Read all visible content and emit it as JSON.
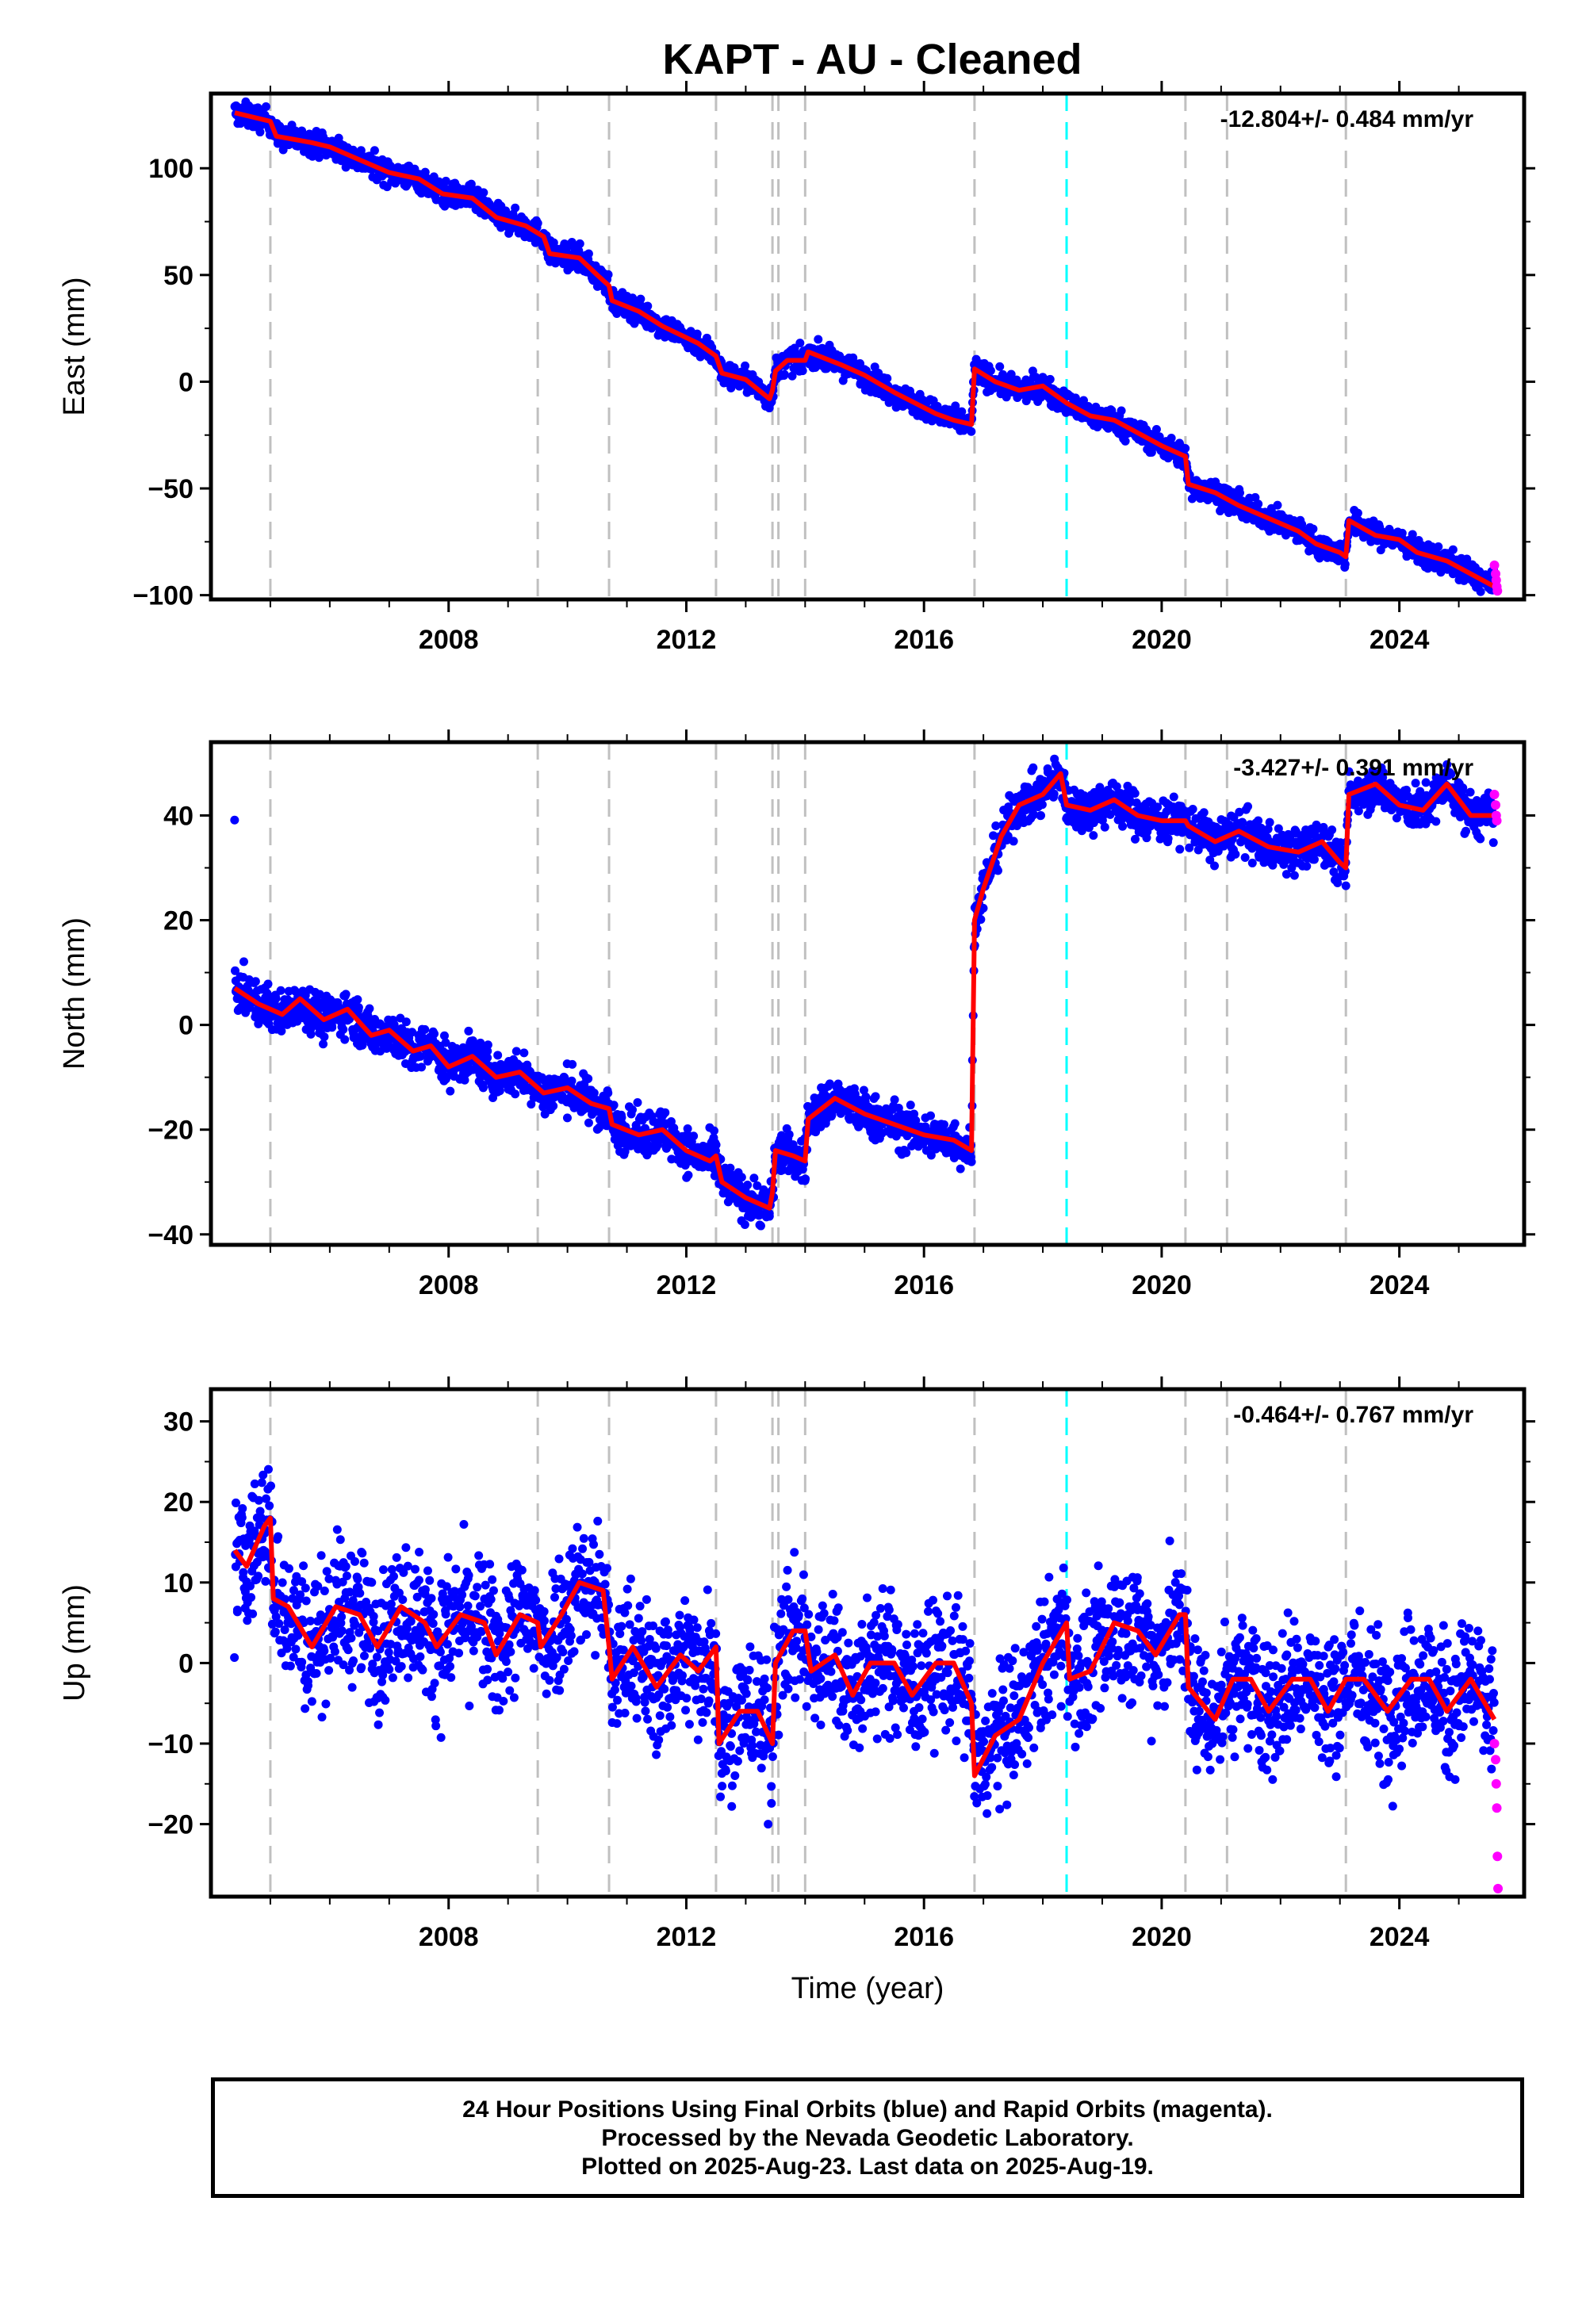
{
  "title": "KAPT  - AU - Cleaned",
  "chart_data": [
    {
      "type": "scatter",
      "component": "east",
      "ylabel": "East (mm)",
      "xlabel": "",
      "rate_text": "-12.804+/- 0.484 mm/yr",
      "xlim": [
        2004.0,
        2026.1
      ],
      "ylim": [
        -102,
        135
      ],
      "yticks": [
        100,
        50,
        0,
        -50,
        -100
      ],
      "ytick_labels": [
        "100",
        "50",
        "0",
        "−50",
        "−100"
      ],
      "xticks": [
        2008,
        2012,
        2016,
        2020,
        2024
      ],
      "xtick_labels": [
        "2008",
        "2012",
        "2016",
        "2020",
        "2024"
      ],
      "offset_lines_gray": [
        2005.0,
        2009.5,
        2010.7,
        2012.5,
        2013.45,
        2013.55,
        2014.0,
        2016.85,
        2020.4,
        2021.1,
        2023.1
      ],
      "offset_lines_cyan": [
        2018.4
      ],
      "scatter_spread": 4,
      "model_line": [
        [
          2004.4,
          126
        ],
        [
          2005.0,
          122
        ],
        [
          2005.1,
          115
        ],
        [
          2005.7,
          112
        ],
        [
          2006.0,
          110
        ],
        [
          2006.5,
          104
        ],
        [
          2007.0,
          98
        ],
        [
          2007.5,
          95
        ],
        [
          2007.9,
          88
        ],
        [
          2008.4,
          86
        ],
        [
          2008.8,
          77
        ],
        [
          2009.3,
          73
        ],
        [
          2009.6,
          68
        ],
        [
          2009.7,
          60
        ],
        [
          2010.2,
          58
        ],
        [
          2010.5,
          50
        ],
        [
          2010.7,
          45
        ],
        [
          2010.75,
          38
        ],
        [
          2011.2,
          33
        ],
        [
          2011.6,
          26
        ],
        [
          2012.2,
          18
        ],
        [
          2012.5,
          12
        ],
        [
          2012.6,
          4
        ],
        [
          2013.0,
          1
        ],
        [
          2013.4,
          -8
        ],
        [
          2013.45,
          -4
        ],
        [
          2013.5,
          5
        ],
        [
          2013.7,
          10
        ],
        [
          2014.0,
          10
        ],
        [
          2014.05,
          14
        ],
        [
          2014.6,
          8
        ],
        [
          2015.0,
          3
        ],
        [
          2015.5,
          -5
        ],
        [
          2016.2,
          -15
        ],
        [
          2016.5,
          -18
        ],
        [
          2016.8,
          -20
        ],
        [
          2016.85,
          6
        ],
        [
          2017.2,
          0
        ],
        [
          2017.6,
          -4
        ],
        [
          2018.0,
          -2
        ],
        [
          2018.4,
          -10
        ],
        [
          2018.8,
          -16
        ],
        [
          2019.2,
          -18
        ],
        [
          2019.6,
          -24
        ],
        [
          2020.0,
          -30
        ],
        [
          2020.4,
          -35
        ],
        [
          2020.45,
          -48
        ],
        [
          2020.9,
          -52
        ],
        [
          2021.3,
          -58
        ],
        [
          2021.8,
          -64
        ],
        [
          2022.3,
          -70
        ],
        [
          2022.6,
          -76
        ],
        [
          2023.0,
          -80
        ],
        [
          2023.1,
          -82
        ],
        [
          2023.15,
          -65
        ],
        [
          2023.6,
          -72
        ],
        [
          2024.0,
          -74
        ],
        [
          2024.3,
          -80
        ],
        [
          2024.8,
          -84
        ],
        [
          2025.2,
          -90
        ],
        [
          2025.6,
          -96
        ]
      ],
      "rapid_points": [
        [
          2025.6,
          -86
        ],
        [
          2025.62,
          -90
        ],
        [
          2025.63,
          -93
        ],
        [
          2025.64,
          -96
        ],
        [
          2025.65,
          -98
        ]
      ]
    },
    {
      "type": "scatter",
      "component": "north",
      "ylabel": "North (mm)",
      "xlabel": "",
      "rate_text": "-3.427+/- 0.391 mm/yr",
      "xlim": [
        2004.0,
        2026.1
      ],
      "ylim": [
        -42,
        54
      ],
      "yticks": [
        40,
        20,
        0,
        -20,
        -40
      ],
      "ytick_labels": [
        "40",
        "20",
        "0",
        "−20",
        "−40"
      ],
      "xticks": [
        2008,
        2012,
        2016,
        2020,
        2024
      ],
      "xtick_labels": [
        "2008",
        "2012",
        "2016",
        "2020",
        "2024"
      ],
      "offset_lines_gray": [
        2005.0,
        2009.5,
        2010.7,
        2012.5,
        2013.45,
        2013.55,
        2014.0,
        2016.85,
        2020.4,
        2021.1,
        2023.1
      ],
      "offset_lines_cyan": [
        2018.4
      ],
      "scatter_spread": 3,
      "model_line": [
        [
          2004.4,
          7
        ],
        [
          2004.8,
          4
        ],
        [
          2005.0,
          3
        ],
        [
          2005.2,
          2
        ],
        [
          2005.5,
          5
        ],
        [
          2005.9,
          1
        ],
        [
          2006.3,
          3
        ],
        [
          2006.7,
          -2
        ],
        [
          2007.0,
          -1
        ],
        [
          2007.4,
          -5
        ],
        [
          2007.7,
          -4
        ],
        [
          2008.0,
          -8
        ],
        [
          2008.4,
          -6
        ],
        [
          2008.8,
          -10
        ],
        [
          2009.2,
          -9
        ],
        [
          2009.5,
          -12
        ],
        [
          2009.6,
          -13
        ],
        [
          2010.0,
          -12
        ],
        [
          2010.4,
          -15
        ],
        [
          2010.7,
          -16
        ],
        [
          2010.75,
          -19
        ],
        [
          2011.2,
          -21
        ],
        [
          2011.6,
          -20
        ],
        [
          2012.0,
          -24
        ],
        [
          2012.4,
          -26
        ],
        [
          2012.5,
          -25
        ],
        [
          2012.6,
          -30
        ],
        [
          2013.0,
          -33
        ],
        [
          2013.4,
          -35
        ],
        [
          2013.45,
          -32
        ],
        [
          2013.5,
          -24
        ],
        [
          2013.8,
          -25
        ],
        [
          2014.0,
          -26
        ],
        [
          2014.05,
          -18
        ],
        [
          2014.5,
          -14
        ],
        [
          2015.0,
          -17
        ],
        [
          2015.5,
          -19
        ],
        [
          2016.0,
          -21
        ],
        [
          2016.5,
          -22
        ],
        [
          2016.8,
          -24
        ],
        [
          2016.85,
          20
        ],
        [
          2017.0,
          26
        ],
        [
          2017.3,
          36
        ],
        [
          2017.6,
          42
        ],
        [
          2018.0,
          44
        ],
        [
          2018.3,
          48
        ],
        [
          2018.4,
          42
        ],
        [
          2018.8,
          41
        ],
        [
          2019.2,
          43
        ],
        [
          2019.6,
          40
        ],
        [
          2020.0,
          39
        ],
        [
          2020.4,
          39
        ],
        [
          2020.45,
          38
        ],
        [
          2020.9,
          35
        ],
        [
          2021.3,
          37
        ],
        [
          2021.8,
          34
        ],
        [
          2022.3,
          33
        ],
        [
          2022.7,
          35
        ],
        [
          2023.0,
          31
        ],
        [
          2023.1,
          30
        ],
        [
          2023.15,
          44
        ],
        [
          2023.6,
          46
        ],
        [
          2024.0,
          42
        ],
        [
          2024.4,
          41
        ],
        [
          2024.8,
          46
        ],
        [
          2025.2,
          40
        ],
        [
          2025.6,
          40
        ]
      ],
      "rapid_points": [
        [
          2025.6,
          44
        ],
        [
          2025.62,
          42
        ],
        [
          2025.63,
          40
        ],
        [
          2025.64,
          39
        ]
      ]
    },
    {
      "type": "scatter",
      "component": "up",
      "ylabel": "Up (mm)",
      "xlabel": "Time (year)",
      "rate_text": "-0.464+/- 0.767 mm/yr",
      "xlim": [
        2004.0,
        2026.1
      ],
      "ylim": [
        -29,
        34
      ],
      "yticks": [
        30,
        20,
        10,
        0,
        -10,
        -20
      ],
      "ytick_labels": [
        "30",
        "20",
        "10",
        "0",
        "−10",
        "−20"
      ],
      "xticks": [
        2008,
        2012,
        2016,
        2020,
        2024
      ],
      "xtick_labels": [
        "2008",
        "2012",
        "2016",
        "2020",
        "2024"
      ],
      "offset_lines_gray": [
        2005.0,
        2009.5,
        2010.7,
        2012.5,
        2013.45,
        2013.55,
        2014.0,
        2016.85,
        2020.4,
        2021.1,
        2023.1
      ],
      "offset_lines_cyan": [
        2018.4
      ],
      "scatter_spread": 6,
      "model_line": [
        [
          2004.4,
          14
        ],
        [
          2004.6,
          12
        ],
        [
          2004.9,
          17
        ],
        [
          2005.0,
          18
        ],
        [
          2005.05,
          8
        ],
        [
          2005.3,
          7
        ],
        [
          2005.7,
          2
        ],
        [
          2006.1,
          7
        ],
        [
          2006.5,
          6
        ],
        [
          2006.8,
          2
        ],
        [
          2007.2,
          7
        ],
        [
          2007.6,
          5
        ],
        [
          2007.8,
          2
        ],
        [
          2008.2,
          6
        ],
        [
          2008.6,
          5
        ],
        [
          2008.8,
          1
        ],
        [
          2009.2,
          6
        ],
        [
          2009.5,
          5
        ],
        [
          2009.55,
          2
        ],
        [
          2009.9,
          6
        ],
        [
          2010.2,
          10
        ],
        [
          2010.6,
          9
        ],
        [
          2010.7,
          2
        ],
        [
          2010.75,
          -2
        ],
        [
          2011.1,
          2
        ],
        [
          2011.5,
          -3
        ],
        [
          2011.9,
          1
        ],
        [
          2012.2,
          -1
        ],
        [
          2012.5,
          2
        ],
        [
          2012.55,
          -10
        ],
        [
          2012.9,
          -6
        ],
        [
          2013.2,
          -6
        ],
        [
          2013.45,
          -10
        ],
        [
          2013.5,
          0
        ],
        [
          2013.8,
          4
        ],
        [
          2014.0,
          4
        ],
        [
          2014.1,
          -1
        ],
        [
          2014.5,
          1
        ],
        [
          2014.8,
          -4
        ],
        [
          2015.1,
          0
        ],
        [
          2015.5,
          0
        ],
        [
          2015.8,
          -4
        ],
        [
          2016.2,
          0
        ],
        [
          2016.5,
          0
        ],
        [
          2016.8,
          -5
        ],
        [
          2016.85,
          -14
        ],
        [
          2017.2,
          -9
        ],
        [
          2017.6,
          -7
        ],
        [
          2018.0,
          0
        ],
        [
          2018.4,
          5
        ],
        [
          2018.45,
          -2
        ],
        [
          2018.8,
          -1
        ],
        [
          2019.2,
          5
        ],
        [
          2019.6,
          4
        ],
        [
          2019.9,
          1
        ],
        [
          2020.3,
          6
        ],
        [
          2020.4,
          6
        ],
        [
          2020.45,
          -3
        ],
        [
          2020.9,
          -7
        ],
        [
          2021.2,
          -2
        ],
        [
          2021.5,
          -2
        ],
        [
          2021.8,
          -6
        ],
        [
          2022.2,
          -2
        ],
        [
          2022.5,
          -2
        ],
        [
          2022.8,
          -6
        ],
        [
          2023.1,
          -2
        ],
        [
          2023.4,
          -2
        ],
        [
          2023.8,
          -6
        ],
        [
          2024.2,
          -2
        ],
        [
          2024.5,
          -2
        ],
        [
          2024.8,
          -6
        ],
        [
          2025.2,
          -2
        ],
        [
          2025.6,
          -7
        ]
      ],
      "rapid_points": [
        [
          2025.6,
          -10
        ],
        [
          2025.62,
          -12
        ],
        [
          2025.63,
          -15
        ],
        [
          2025.64,
          -18
        ],
        [
          2025.65,
          -24
        ],
        [
          2025.66,
          -28
        ]
      ]
    }
  ],
  "colors": {
    "final_points": "#0000ff",
    "rapid_points": "#ff00ff",
    "model_line": "#ff0000",
    "offset_gray": "#c0c0c0",
    "offset_cyan": "#00ffff",
    "frame": "#000000"
  },
  "footer": {
    "line1": "24 Hour Positions Using Final Orbits (blue) and Rapid Orbits (magenta).",
    "line2": "Processed by the Nevada Geodetic Laboratory.",
    "line3": "Plotted on 2025-Aug-23. Last data on 2025-Aug-19."
  }
}
